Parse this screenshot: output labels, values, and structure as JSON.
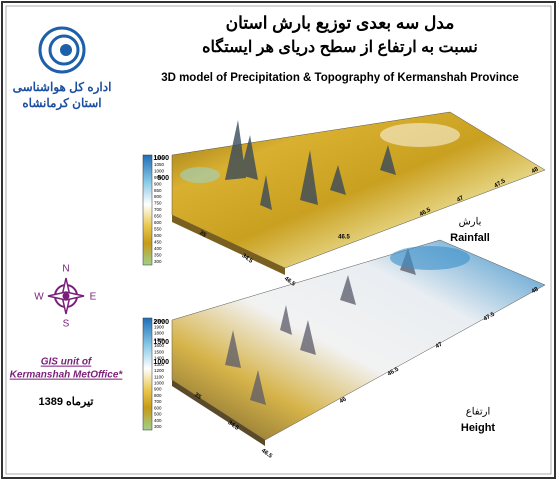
{
  "header": {
    "title_fa_1": "مدل سه بعدی توزیع بارش استان",
    "title_fa_2": "نسبت به ارتفاع از سطح دریای هر ایستگاه",
    "title_en": "3D model of Precipitation & Topography of Kermanshah Province"
  },
  "org": {
    "name_fa_1": "اداره کل هواشناسی",
    "name_fa_2": "استان کرمانشاه"
  },
  "compass": {
    "n": "N",
    "e": "E",
    "s": "S",
    "w": "W"
  },
  "credit": {
    "line1": "GIS unit of",
    "line2": "Kermanshah  MetOffice*"
  },
  "date": "تیرماه 1389",
  "rainfall": {
    "label_fa": "بارش",
    "label_en": "Rainfall",
    "legend": [
      1100,
      1050,
      1000,
      950,
      900,
      850,
      800,
      750,
      700,
      650,
      600,
      550,
      500,
      450,
      400,
      350,
      300
    ],
    "z_ticks": [
      1000,
      500
    ],
    "lon_ticks": [
      48,
      47.5,
      47,
      46.5
    ],
    "lat_ticks": [
      35,
      34.5,
      46.5
    ]
  },
  "height": {
    "label_fa": "ارتفاع",
    "label_en": "Height",
    "legend": [
      2000,
      1900,
      1800,
      1700,
      1600,
      1500,
      1400,
      1300,
      1200,
      1100,
      1000,
      900,
      800,
      700,
      600,
      500,
      400,
      300
    ],
    "z_ticks": [
      2000,
      1500,
      1000
    ],
    "lon_ticks": [
      48,
      47.5,
      47,
      46.5,
      46
    ],
    "lat_ticks": [
      35,
      34.5,
      46.5
    ],
    "back_tick": 46.5
  }
}
